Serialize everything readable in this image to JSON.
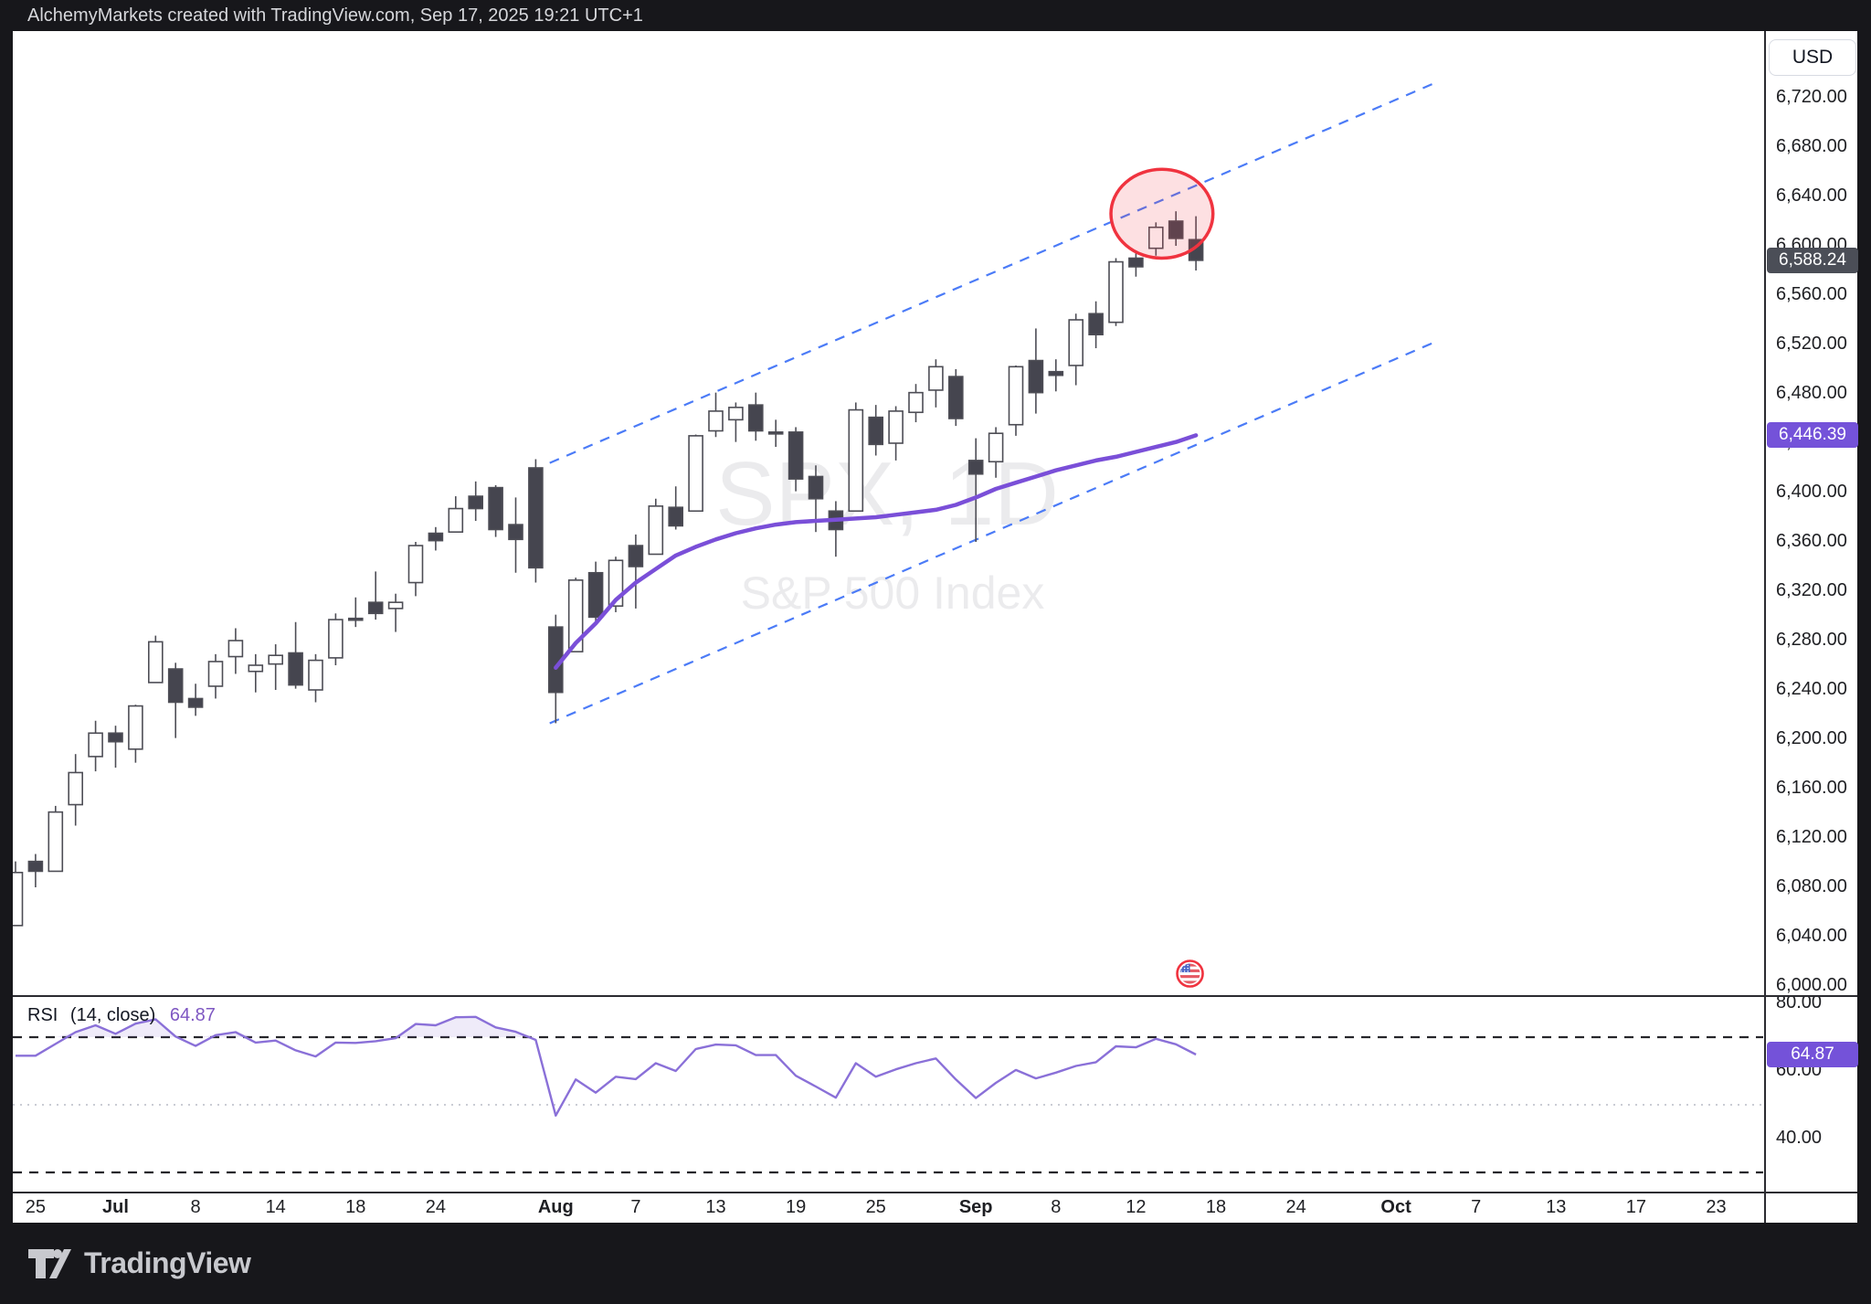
{
  "header": {
    "attribution": "AlchemyMarkets created with TradingView.com, Sep 17, 2025 19:21 UTC+1"
  },
  "watermark": {
    "title": "SPX, 1D",
    "subtitle": "S&P 500 Index"
  },
  "price_axis": {
    "currency": "USD",
    "ticks": [
      {
        "label": "6,720.00",
        "value": 6720
      },
      {
        "label": "6,680.00",
        "value": 6680
      },
      {
        "label": "6,640.00",
        "value": 6640
      },
      {
        "label": "6,600.00",
        "value": 6600
      },
      {
        "label": "6,560.00",
        "value": 6560
      },
      {
        "label": "6,520.00",
        "value": 6520
      },
      {
        "label": "6,480.00",
        "value": 6480
      },
      {
        "label": "6,440.00",
        "value": 6440
      },
      {
        "label": "6,400.00",
        "value": 6400
      },
      {
        "label": "6,360.00",
        "value": 6360
      },
      {
        "label": "6,320.00",
        "value": 6320
      },
      {
        "label": "6,280.00",
        "value": 6280
      },
      {
        "label": "6,240.00",
        "value": 6240
      },
      {
        "label": "6,200.00",
        "value": 6200
      },
      {
        "label": "6,160.00",
        "value": 6160
      },
      {
        "label": "6,120.00",
        "value": 6120
      },
      {
        "label": "6,080.00",
        "value": 6080
      },
      {
        "label": "6,040.00",
        "value": 6040
      },
      {
        "label": "6,000.00",
        "value": 6000
      }
    ],
    "last_price_badge": {
      "label": "6,588.24",
      "value": 6588.24,
      "bg": "#4b4e57"
    },
    "ma_badge": {
      "label": "6,446.39",
      "value": 6446.39,
      "bg": "#7452d9"
    }
  },
  "time_axis": {
    "ticks": [
      {
        "label": "25",
        "index": 1
      },
      {
        "label": "Jul",
        "index": 5,
        "bold": true
      },
      {
        "label": "8",
        "index": 9
      },
      {
        "label": "14",
        "index": 13
      },
      {
        "label": "18",
        "index": 17
      },
      {
        "label": "24",
        "index": 21
      },
      {
        "label": "Aug",
        "index": 27,
        "bold": true
      },
      {
        "label": "7",
        "index": 31
      },
      {
        "label": "13",
        "index": 35
      },
      {
        "label": "19",
        "index": 39
      },
      {
        "label": "25",
        "index": 43
      },
      {
        "label": "Sep",
        "index": 48,
        "bold": true
      },
      {
        "label": "8",
        "index": 52
      },
      {
        "label": "12",
        "index": 56
      },
      {
        "label": "18",
        "index": 60
      },
      {
        "label": "24",
        "index": 64
      },
      {
        "label": "Oct",
        "index": 69,
        "bold": true
      },
      {
        "label": "7",
        "index": 73
      },
      {
        "label": "13",
        "index": 77
      },
      {
        "label": "17",
        "index": 81
      },
      {
        "label": "23",
        "index": 85
      }
    ]
  },
  "rsi": {
    "name": "RSI",
    "params": "(14, close)",
    "value_label": "64.87",
    "value": 64.87,
    "badge_bg": "#7452d9",
    "axis_ticks": [
      {
        "label": "80.00",
        "value": 80
      },
      {
        "label": "60.00",
        "value": 60
      },
      {
        "label": "40.00",
        "value": 40
      }
    ],
    "levels": {
      "overbought": 70,
      "middle": 50,
      "oversold": 30
    },
    "values": [
      64.5,
      64.5,
      68,
      71.5,
      73.5,
      71,
      74,
      75.3,
      70.2,
      67.4,
      70.6,
      71.5,
      68.4,
      69,
      66.1,
      64.3,
      68.4,
      68.3,
      68.8,
      69.7,
      73.9,
      73.5,
      75.9,
      76,
      72.9,
      71.6,
      69.2,
      46.8,
      57.5,
      53.6,
      58.3,
      57.6,
      62.3,
      60,
      66.5,
      67.8,
      67.6,
      64.7,
      64.7,
      58.6,
      55.4,
      52.1,
      62.3,
      58.3,
      60.5,
      62.3,
      63.7,
      57.5,
      52,
      56.5,
      60.3,
      57.8,
      59.5,
      61.5,
      62.6,
      67.3,
      67,
      69.5,
      67.9,
      64.87
    ]
  },
  "footer": {
    "logo_text": "TradingView"
  },
  "colors": {
    "up_fill": "#ffffff",
    "down_fill": "#45454f",
    "candle_border": "#4d4d55",
    "wick": "#4d4d55",
    "ma_line": "#7a4fd8",
    "rsi_line": "#8a70d8",
    "channel_blue": "#4b7bf7",
    "circle_red": "#f0333f",
    "circle_fill": "rgba(240,60,75,0.16)",
    "level_dash": "#26262b",
    "level_mid": "#b9bcc5",
    "rsi_fill": "rgba(130,100,210,0.13)"
  },
  "chart_data": {
    "type": "candlestick",
    "symbol": "SPX",
    "timeframe": "1D",
    "description": "S&P 500 Index",
    "ylim": [
      6000,
      6760
    ],
    "price_step": 40,
    "dates": [
      "Jun 24",
      "Jun 25",
      "Jun 26",
      "Jun 27",
      "Jun 30",
      "Jul 1",
      "Jul 2",
      "Jul 3",
      "Jul 7",
      "Jul 8",
      "Jul 9",
      "Jul 10",
      "Jul 11",
      "Jul 14",
      "Jul 15",
      "Jul 16",
      "Jul 17",
      "Jul 18",
      "Jul 21",
      "Jul 22",
      "Jul 23",
      "Jul 24",
      "Jul 25",
      "Jul 28",
      "Jul 29",
      "Jul 30",
      "Jul 31",
      "Aug 1",
      "Aug 4",
      "Aug 5",
      "Aug 6",
      "Aug 7",
      "Aug 8",
      "Aug 11",
      "Aug 12",
      "Aug 13",
      "Aug 14",
      "Aug 15",
      "Aug 18",
      "Aug 19",
      "Aug 20",
      "Aug 21",
      "Aug 22",
      "Aug 25",
      "Aug 26",
      "Aug 27",
      "Aug 28",
      "Aug 29",
      "Sep 2",
      "Sep 3",
      "Sep 4",
      "Sep 5",
      "Sep 8",
      "Sep 9",
      "Sep 10",
      "Sep 11",
      "Sep 12",
      "Sep 15",
      "Sep 16",
      "Sep 17"
    ],
    "candles": [
      [
        6049,
        6101,
        6049,
        6092
      ],
      [
        6101,
        6107,
        6080,
        6093
      ],
      [
        6093,
        6146,
        6093,
        6141
      ],
      [
        6147,
        6188,
        6130,
        6173
      ],
      [
        6186,
        6215,
        6174,
        6205
      ],
      [
        6205,
        6211,
        6177,
        6198
      ],
      [
        6192,
        6228,
        6181,
        6227
      ],
      [
        6246,
        6284,
        6246,
        6279
      ],
      [
        6257,
        6262,
        6201,
        6230
      ],
      [
        6233,
        6245,
        6219,
        6226
      ],
      [
        6243,
        6269,
        6233,
        6263
      ],
      [
        6267,
        6290,
        6253,
        6280
      ],
      [
        6255,
        6269,
        6238,
        6260
      ],
      [
        6261,
        6277,
        6240,
        6268
      ],
      [
        6270,
        6295,
        6241,
        6244
      ],
      [
        6240,
        6269,
        6230,
        6264
      ],
      [
        6266,
        6302,
        6260,
        6297
      ],
      [
        6298,
        6315,
        6291,
        6297
      ],
      [
        6311,
        6336,
        6297,
        6302
      ],
      [
        6306,
        6318,
        6287,
        6311
      ],
      [
        6327,
        6360,
        6316,
        6357
      ],
      [
        6367,
        6372,
        6353,
        6361
      ],
      [
        6368,
        6397,
        6368,
        6387
      ],
      [
        6397,
        6409,
        6377,
        6387
      ],
      [
        6404,
        6406,
        6364,
        6370
      ],
      [
        6374,
        6396,
        6335,
        6362
      ],
      [
        6420,
        6427,
        6327,
        6339
      ],
      [
        6291,
        6301,
        6213,
        6238
      ],
      [
        6271,
        6331,
        6271,
        6329
      ],
      [
        6335,
        6344,
        6295,
        6299
      ],
      [
        6308,
        6348,
        6303,
        6345
      ],
      [
        6357,
        6366,
        6306,
        6340
      ],
      [
        6350,
        6395,
        6350,
        6389
      ],
      [
        6388,
        6405,
        6370,
        6373
      ],
      [
        6385,
        6447,
        6385,
        6446
      ],
      [
        6450,
        6481,
        6445,
        6466
      ],
      [
        6459,
        6473,
        6441,
        6469
      ],
      [
        6471,
        6481,
        6442,
        6450
      ],
      [
        6449,
        6459,
        6437,
        6448
      ],
      [
        6449,
        6453,
        6401,
        6411
      ],
      [
        6413,
        6422,
        6368,
        6395
      ],
      [
        6385,
        6393,
        6348,
        6370
      ],
      [
        6385,
        6473,
        6385,
        6467
      ],
      [
        6461,
        6471,
        6430,
        6439
      ],
      [
        6440,
        6470,
        6426,
        6466
      ],
      [
        6465,
        6488,
        6457,
        6481
      ],
      [
        6483,
        6508,
        6469,
        6502
      ],
      [
        6494,
        6500,
        6454,
        6460
      ],
      [
        6426,
        6444,
        6360,
        6415
      ],
      [
        6425,
        6453,
        6412,
        6448
      ],
      [
        6455,
        6503,
        6446,
        6502
      ],
      [
        6507,
        6533,
        6464,
        6481
      ],
      [
        6498,
        6508,
        6482,
        6495
      ],
      [
        6503,
        6545,
        6487,
        6540
      ],
      [
        6545,
        6555,
        6517,
        6528
      ],
      [
        6538,
        6590,
        6535,
        6587
      ],
      [
        6590,
        6596,
        6575,
        6583
      ],
      [
        6598,
        6619,
        6592,
        6615
      ],
      [
        6620,
        6628,
        6600,
        6606
      ],
      [
        6605,
        6624,
        6580,
        6588.24
      ]
    ],
    "last_close": 6588.24,
    "ma_line": {
      "name": "moving-average",
      "start_index": 27,
      "current_value": 6446.39,
      "values": [
        6258,
        6278,
        6294,
        6313,
        6327,
        6338,
        6349,
        6356,
        6362,
        6367,
        6371,
        6374,
        6376,
        6377,
        6378,
        6379,
        6380,
        6382,
        6384,
        6386,
        6390,
        6396,
        6403,
        6408,
        6413,
        6418,
        6422,
        6426,
        6429,
        6433,
        6437,
        6441,
        6446.39
      ]
    },
    "trend_channel": {
      "upper": {
        "x1_index": 26.7,
        "price1": 6424,
        "x2_index": 70.8,
        "price2": 6731
      },
      "lower": {
        "x1_index": 26.7,
        "price1": 6213,
        "x2_index": 70.8,
        "price2": 6521
      }
    },
    "highlight_ellipse": {
      "center_index": 57.3,
      "center_price": 6626,
      "radius_days": 2.55,
      "radius_points": 36
    },
    "flag_marker": {
      "index": 58.7,
      "price": 6010
    }
  }
}
